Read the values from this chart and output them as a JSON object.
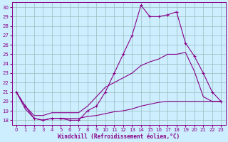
{
  "bg_color": "#cceeff",
  "line_color": "#880088",
  "grid_color": "#99bbbb",
  "xlabel": "Windchill (Refroidissement éolien,°C)",
  "xlim": [
    -0.5,
    23.5
  ],
  "ylim": [
    17.5,
    30.5
  ],
  "yticks": [
    18,
    19,
    20,
    21,
    22,
    23,
    24,
    25,
    26,
    27,
    28,
    29,
    30
  ],
  "xticks": [
    0,
    1,
    2,
    3,
    4,
    5,
    6,
    7,
    8,
    9,
    10,
    11,
    12,
    13,
    14,
    15,
    16,
    17,
    18,
    19,
    20,
    21,
    22,
    23
  ],
  "line1_x": [
    0,
    1,
    2,
    3,
    4,
    5,
    6,
    7,
    8,
    9,
    10,
    11,
    12,
    13,
    14,
    15,
    16,
    17,
    18,
    19,
    20,
    21,
    22,
    23
  ],
  "line1_y": [
    21,
    19.5,
    18.2,
    18.0,
    18.2,
    18.2,
    18.0,
    18.0,
    19.0,
    19.5,
    21.0,
    23.0,
    25.0,
    27.0,
    30.2,
    29.0,
    29.0,
    29.2,
    29.5,
    26.2,
    24.8,
    23.0,
    21.0,
    20.0
  ],
  "line2_x": [
    0,
    1,
    2,
    3,
    4,
    5,
    6,
    7,
    8,
    9,
    10,
    11,
    12,
    13,
    14,
    15,
    16,
    17,
    18,
    19,
    20,
    21,
    22,
    23
  ],
  "line2_y": [
    21.0,
    19.2,
    18.2,
    18.0,
    18.2,
    18.2,
    18.2,
    18.2,
    18.4,
    18.5,
    18.7,
    18.9,
    19.0,
    19.2,
    19.5,
    19.7,
    19.9,
    20.0,
    20.0,
    20.0,
    20.0,
    20.0,
    20.0,
    20.0
  ],
  "line3_x": [
    0,
    1,
    2,
    3,
    4,
    5,
    6,
    7,
    8,
    9,
    10,
    11,
    12,
    13,
    14,
    15,
    16,
    17,
    18,
    19,
    20,
    21,
    22,
    23
  ],
  "line3_y": [
    21.0,
    19.5,
    18.5,
    18.5,
    18.8,
    18.8,
    18.8,
    18.8,
    19.5,
    20.5,
    21.5,
    22.0,
    22.5,
    23.0,
    23.8,
    24.2,
    24.5,
    25.0,
    25.0,
    25.2,
    23.2,
    20.5,
    20.0,
    20.0
  ]
}
